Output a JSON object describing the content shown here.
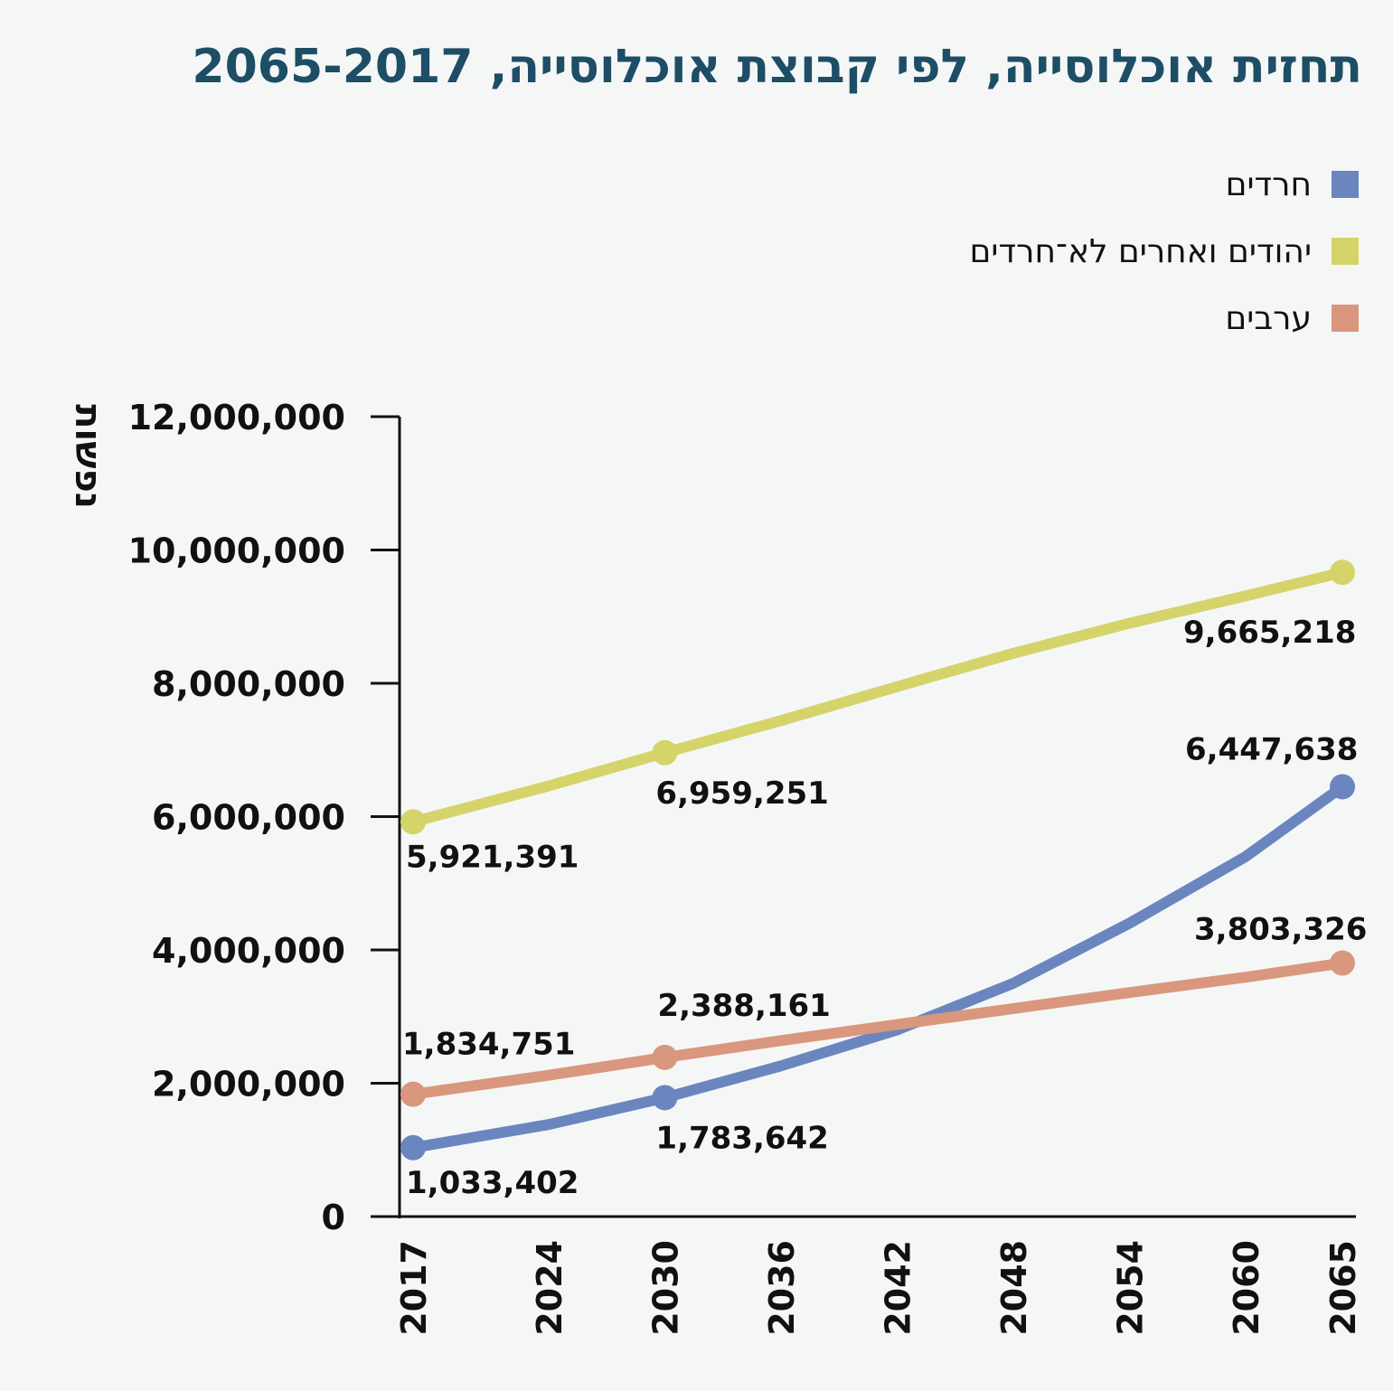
{
  "chart_data": {
    "type": "line",
    "title": "תחזית אוכלוסייה, לפי קבוצת אוכלוסייה, 2065-2017",
    "ylabel": "נפשות",
    "xlabel": "",
    "x_ticks": [
      "2017",
      "2024",
      "2030",
      "2036",
      "2042",
      "2048",
      "2054",
      "2060",
      "2065"
    ],
    "y_ticks": [
      "0",
      "2,000,000",
      "4,000,000",
      "6,000,000",
      "8,000,000",
      "10,000,000",
      "12,000,000"
    ],
    "ylim": [
      0,
      12000000
    ],
    "xlim": [
      2017,
      2065
    ],
    "legend_position": "top-right",
    "grid": false,
    "series": [
      {
        "name": "חרדים",
        "color": "#6b86bf",
        "points": [
          [
            2017,
            1033402
          ],
          [
            2024,
            1380000
          ],
          [
            2030,
            1783642
          ],
          [
            2036,
            2260000
          ],
          [
            2042,
            2800000
          ],
          [
            2048,
            3500000
          ],
          [
            2054,
            4400000
          ],
          [
            2060,
            5400000
          ],
          [
            2065,
            6447638
          ]
        ],
        "labels": [
          {
            "x": 2017,
            "y": 1033402,
            "text": "1,033,402",
            "pos": "below"
          },
          {
            "x": 2030,
            "y": 1783642,
            "text": "1,783,642",
            "pos": "below"
          },
          {
            "x": 2065,
            "y": 6447638,
            "text": "6,447,638",
            "pos": "above"
          }
        ]
      },
      {
        "name": "יהודים ואחרים לא־חרדים",
        "color": "#d4d46a",
        "points": [
          [
            2017,
            5921391
          ],
          [
            2024,
            6460000
          ],
          [
            2030,
            6959251
          ],
          [
            2036,
            7440000
          ],
          [
            2042,
            7950000
          ],
          [
            2048,
            8450000
          ],
          [
            2054,
            8900000
          ],
          [
            2060,
            9310000
          ],
          [
            2065,
            9665218
          ]
        ],
        "labels": [
          {
            "x": 2017,
            "y": 5921391,
            "text": "5,921,391",
            "pos": "below"
          },
          {
            "x": 2030,
            "y": 6959251,
            "text": "6,959,251",
            "pos": "below"
          },
          {
            "x": 2065,
            "y": 9665218,
            "text": "9,665,218",
            "pos": "below"
          }
        ]
      },
      {
        "name": "ערבים",
        "color": "#d9977e",
        "points": [
          [
            2017,
            1834751
          ],
          [
            2024,
            2120000
          ],
          [
            2030,
            2388161
          ],
          [
            2036,
            2640000
          ],
          [
            2042,
            2880000
          ],
          [
            2048,
            3120000
          ],
          [
            2054,
            3360000
          ],
          [
            2060,
            3590000
          ],
          [
            2065,
            3803326
          ]
        ],
        "labels": [
          {
            "x": 2017,
            "y": 1834751,
            "text": "1,834,751",
            "pos": "above"
          },
          {
            "x": 2030,
            "y": 2388161,
            "text": "2,388,161",
            "pos": "above"
          },
          {
            "x": 2065,
            "y": 3803326,
            "text": "3,803,326",
            "pos": "above"
          }
        ]
      }
    ]
  }
}
